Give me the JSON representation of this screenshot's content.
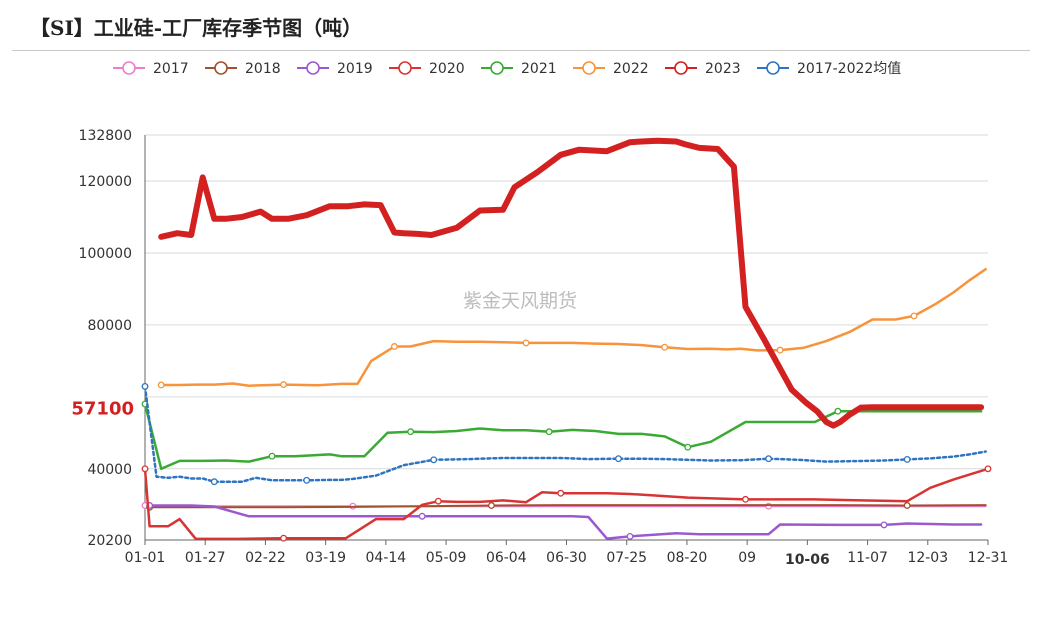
{
  "chart_data": {
    "type": "line",
    "title": "【SI】工业硅-工厂库存季节图（吨）",
    "watermark": "紫金天风期货",
    "x_ticks": [
      "01-01",
      "01-27",
      "02-22",
      "03-19",
      "04-14",
      "05-09",
      "06-04",
      "06-30",
      "07-25",
      "08-20",
      "09",
      "10-06",
      "11-07",
      "12-03",
      "12-31"
    ],
    "highlight_x_label": "10-06",
    "y_ticks": [
      20200,
      40000,
      60000,
      80000,
      100000,
      120000,
      132800
    ],
    "y_tick_labels": [
      "20200",
      "40000",
      "",
      "80000",
      "100000",
      "120000",
      "132800"
    ],
    "highlight_y_label": "57100",
    "highlight_y_value": 57100,
    "ylim": [
      20200,
      132800
    ],
    "xlim": [
      0,
      365
    ],
    "legend_position": "top",
    "series": [
      {
        "name": "2017",
        "color": "#f07cd0",
        "dash": false,
        "width": 2,
        "x": [
          0,
          5,
          10,
          20,
          30,
          60,
          90,
          120,
          150,
          180,
          210,
          240,
          270,
          300,
          330,
          364
        ],
        "y": [
          29800,
          29500,
          29500,
          29600,
          29600,
          29600,
          29600,
          29600,
          29600,
          29600,
          29600,
          29600,
          29600,
          29600,
          29600,
          29600
        ]
      },
      {
        "name": "2018",
        "color": "#a0522d",
        "dash": false,
        "width": 2,
        "x": [
          2,
          20,
          30,
          60,
          90,
          120,
          150,
          180,
          210,
          240,
          270,
          300,
          330,
          364
        ],
        "y": [
          29300,
          29300,
          29300,
          29300,
          29400,
          29600,
          29800,
          29900,
          29900,
          29900,
          29900,
          29900,
          29800,
          29900
        ]
      },
      {
        "name": "2019",
        "color": "#9b59d0",
        "dash": false,
        "width": 2.5,
        "x": [
          2,
          20,
          30,
          45,
          60,
          90,
          120,
          150,
          170,
          185,
          192,
          200,
          210,
          230,
          240,
          270,
          275,
          300,
          320,
          330,
          350,
          362
        ],
        "y": [
          29800,
          29800,
          29500,
          26800,
          26800,
          26800,
          26800,
          26800,
          26800,
          26800,
          26600,
          20600,
          21200,
          22100,
          21800,
          21800,
          24500,
          24400,
          24400,
          24800,
          24500,
          24500
        ]
      },
      {
        "name": "2020",
        "color": "#d93434",
        "dash": false,
        "width": 2.5,
        "x": [
          0,
          2,
          10,
          15,
          22,
          40,
          60,
          80,
          87,
          100,
          112,
          120,
          127,
          135,
          145,
          155,
          165,
          172,
          180,
          190,
          200,
          210,
          220,
          235,
          260,
          290,
          310,
          330,
          340,
          350,
          365
        ],
        "y": [
          40000,
          24000,
          24000,
          26000,
          20500,
          20500,
          20700,
          20700,
          20700,
          26000,
          26000,
          30000,
          31000,
          30800,
          30800,
          31200,
          30700,
          33500,
          33200,
          33200,
          33200,
          33000,
          32600,
          32000,
          31500,
          31500,
          31200,
          31000,
          34700,
          37000,
          40000
        ]
      },
      {
        "name": "2021",
        "color": "#3aaa35",
        "dash": false,
        "width": 2.5,
        "x": [
          0,
          7,
          15,
          25,
          35,
          45,
          55,
          65,
          80,
          85,
          95,
          105,
          115,
          125,
          135,
          145,
          155,
          165,
          175,
          185,
          195,
          205,
          215,
          225,
          235,
          245,
          260,
          275,
          285,
          290,
          300,
          315,
          330,
          340,
          350,
          362
        ],
        "y": [
          58000,
          40000,
          42200,
          42200,
          42300,
          42000,
          43500,
          43500,
          44000,
          43500,
          43500,
          50000,
          50300,
          50200,
          50500,
          51200,
          50700,
          50700,
          50300,
          50800,
          50500,
          49700,
          49700,
          49000,
          46000,
          47500,
          53000,
          53000,
          53000,
          53000,
          56000,
          56000,
          56000,
          56000,
          56000,
          56000
        ]
      },
      {
        "name": "2022",
        "color": "#f7943b",
        "dash": false,
        "width": 2.5,
        "x": [
          7,
          15,
          22,
          30,
          38,
          45,
          60,
          75,
          85,
          88,
          92,
          98,
          108,
          115,
          125,
          135,
          145,
          155,
          165,
          175,
          185,
          195,
          205,
          215,
          225,
          235,
          245,
          252,
          258,
          265,
          275,
          285,
          295,
          305,
          315,
          325,
          333,
          342,
          350,
          357,
          364
        ],
        "y": [
          63300,
          63300,
          63400,
          63400,
          63700,
          63100,
          63400,
          63200,
          63600,
          63600,
          63600,
          70000,
          74000,
          74000,
          75500,
          75300,
          75300,
          75200,
          75000,
          75000,
          75000,
          74800,
          74700,
          74400,
          73800,
          73300,
          73400,
          73200,
          73400,
          72900,
          73000,
          73600,
          75500,
          78000,
          81500,
          81500,
          82500,
          85700,
          89000,
          92400,
          95500
        ]
      },
      {
        "name": "2023",
        "color": "#d32020",
        "dash": false,
        "width": 6,
        "x": [
          7,
          14,
          20,
          25,
          30,
          35,
          42,
          50,
          55,
          62,
          70,
          80,
          88,
          95,
          102,
          108,
          112,
          118,
          124,
          135,
          145,
          155,
          160,
          170,
          180,
          188,
          200,
          210,
          215,
          222,
          230,
          234,
          240,
          248,
          255,
          260,
          268,
          280,
          286,
          291,
          295,
          298,
          301,
          305,
          310,
          315,
          320,
          324,
          330,
          336,
          342,
          348,
          354,
          358,
          362
        ],
        "y": [
          104500,
          105500,
          105000,
          121000,
          109500,
          109500,
          110000,
          111500,
          109500,
          109500,
          110500,
          113000,
          113000,
          113500,
          113300,
          105700,
          105500,
          105300,
          105000,
          107000,
          111800,
          112000,
          118300,
          122500,
          127300,
          128700,
          128300,
          130800,
          131000,
          131200,
          131000,
          130200,
          129200,
          128900,
          124000,
          85000,
          76000,
          62000,
          58500,
          56000,
          53000,
          52000,
          53000,
          55000,
          57000,
          57100,
          57100,
          57100,
          57100,
          57100,
          57100,
          57100,
          57100,
          57100,
          57100
        ]
      },
      {
        "name": "2017-2022均值",
        "color": "#2f74c0",
        "dash": true,
        "width": 2.5,
        "x": [
          0,
          5,
          10,
          15,
          20,
          25,
          30,
          35,
          42,
          48,
          55,
          62,
          70,
          80,
          85,
          90,
          100,
          112,
          125,
          140,
          155,
          168,
          180,
          192,
          205,
          215,
          225,
          235,
          245,
          258,
          270,
          283,
          295,
          305,
          312,
          320,
          330,
          340,
          350,
          357,
          364
        ],
        "y": [
          62900,
          37800,
          37500,
          37800,
          37300,
          37300,
          36400,
          36400,
          36400,
          37500,
          36800,
          36800,
          36800,
          36900,
          36900,
          37200,
          38100,
          41000,
          42500,
          42700,
          43000,
          43000,
          43000,
          42700,
          42800,
          42800,
          42700,
          42500,
          42300,
          42400,
          42800,
          42500,
          42000,
          42100,
          42200,
          42300,
          42600,
          42900,
          43400,
          44000,
          44800
        ]
      }
    ]
  }
}
